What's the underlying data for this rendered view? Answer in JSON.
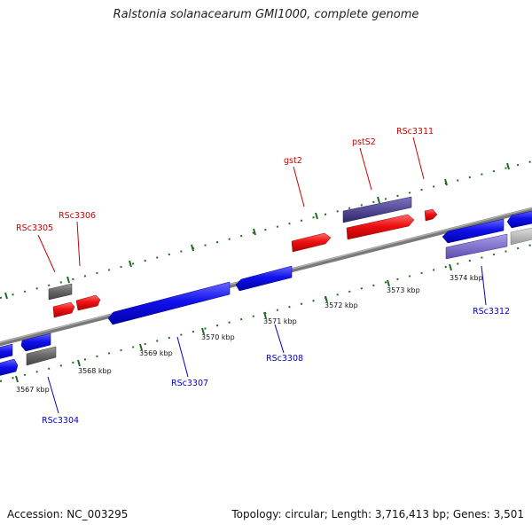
{
  "title": "Ralstonia solanacearum GMI1000, complete genome",
  "accession_text": "Accession: NC_003295",
  "stats_text": "Topology: circular; Length: 3,716,413 bp; Genes: 3,501",
  "colors": {
    "plus": "#ee1111",
    "minus": "#1111ee",
    "pseudo": "#666666",
    "pale": "#bbbbbb",
    "violet": "#7b68cc",
    "navy": "#4a3f8f",
    "tick": "#1f6b1f",
    "backbone": "#7a7a7a"
  },
  "ticks": [
    {
      "label": "3567 kbp"
    },
    {
      "label": "3568 kbp"
    },
    {
      "label": "3569 kbp"
    },
    {
      "label": "3570 kbp"
    },
    {
      "label": "3571 kbp"
    },
    {
      "label": "3572 kbp"
    },
    {
      "label": "3573 kbp"
    },
    {
      "label": "3574 kbp"
    }
  ],
  "gene_labels": {
    "rsc3305": "RSc3305",
    "rsc3306": "RSc3306",
    "gst2": "gst2",
    "psts2": "pstS2",
    "rsc3311": "RSc3311",
    "rsc3304": "RSc3304",
    "rsc3307": "RSc3307",
    "rsc3308": "RSc3308",
    "rsc3312": "RSc3312"
  }
}
